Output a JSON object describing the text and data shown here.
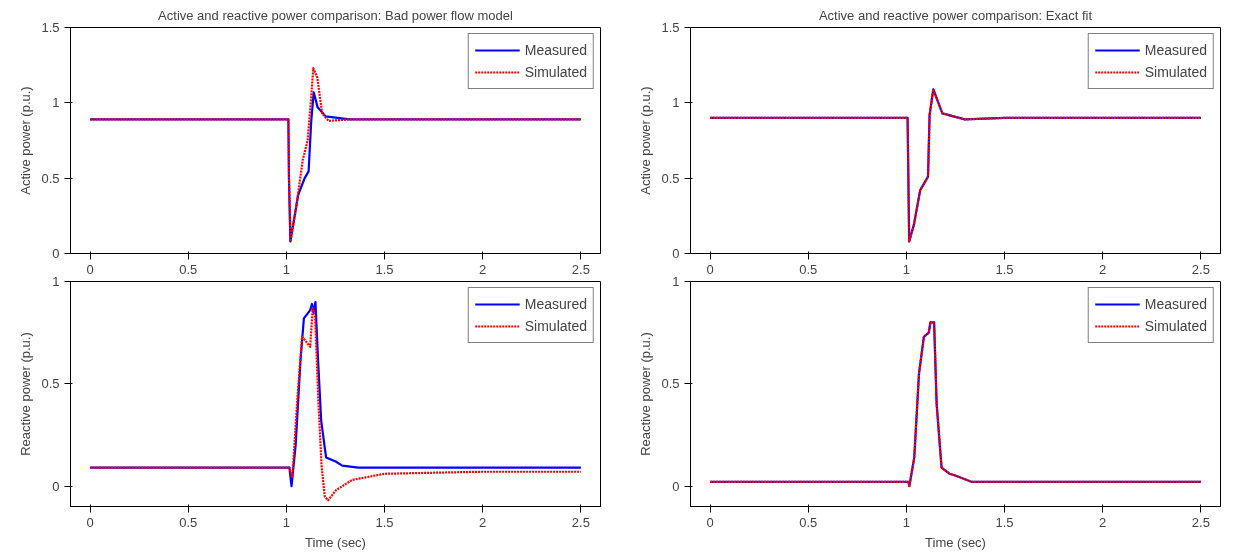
{
  "chart_data": [
    {
      "type": "line",
      "title": "Active and reactive power comparison: Bad power flow model",
      "ylabel": "Active power (p.u.)",
      "xlim": [
        -0.1,
        2.6
      ],
      "ylim": [
        0,
        1.5
      ],
      "xticks": [
        0,
        0.5,
        1,
        1.5,
        2,
        2.5
      ],
      "yticks": [
        0,
        0.5,
        1,
        1.5
      ],
      "grid": false,
      "legend": "top right",
      "marker": "none",
      "series": [
        {
          "name": "Measured",
          "color": "#0000ff",
          "line_style": "solid",
          "x": [
            0,
            1.01,
            1.013,
            1.02,
            1.06,
            1.093,
            1.113,
            1.126,
            1.139,
            1.159,
            1.2,
            1.32,
            1.5,
            2.5
          ],
          "values": [
            0.89,
            0.89,
            0.5,
            0.08,
            0.39,
            0.5,
            0.545,
            0.87,
            1.07,
            0.97,
            0.91,
            0.89,
            0.89,
            0.89
          ]
        },
        {
          "name": "Simulated",
          "color": "#ff0000",
          "line_style": "dotted",
          "x": [
            0,
            1.01,
            1.013,
            1.021,
            1.05,
            1.083,
            1.108,
            1.124,
            1.137,
            1.157,
            1.182,
            1.215,
            1.32,
            1.5,
            2.5
          ],
          "values": [
            0.89,
            0.89,
            0.5,
            0.08,
            0.31,
            0.62,
            0.75,
            1.0,
            1.23,
            1.17,
            0.93,
            0.88,
            0.89,
            0.89,
            0.89
          ]
        }
      ]
    },
    {
      "type": "line",
      "title": "Active and reactive power comparison: Exact fit",
      "ylabel": "Active power (p.u.)",
      "xlim": [
        -0.1,
        2.6
      ],
      "ylim": [
        0,
        1.5
      ],
      "xticks": [
        0,
        0.5,
        1,
        1.5,
        2,
        2.5
      ],
      "yticks": [
        0,
        0.5,
        1,
        1.5
      ],
      "grid": false,
      "legend": "top right",
      "marker": "none",
      "series": [
        {
          "name": "Measured",
          "color": "#0000ff",
          "line_style": "solid",
          "x": [
            0,
            1.006,
            1.014,
            1.038,
            1.07,
            1.11,
            1.118,
            1.137,
            1.183,
            1.297,
            1.5,
            2.5
          ],
          "values": [
            0.9,
            0.9,
            0.08,
            0.19,
            0.42,
            0.51,
            0.92,
            1.09,
            0.93,
            0.89,
            0.9,
            0.9
          ]
        },
        {
          "name": "Simulated",
          "color": "#ff0000",
          "line_style": "dotted",
          "x": [
            0,
            1.006,
            1.014,
            1.038,
            1.07,
            1.11,
            1.118,
            1.137,
            1.183,
            1.297,
            1.5,
            2.5
          ],
          "values": [
            0.9,
            0.9,
            0.08,
            0.19,
            0.42,
            0.51,
            0.92,
            1.09,
            0.93,
            0.89,
            0.9,
            0.9
          ]
        }
      ]
    },
    {
      "type": "line",
      "xlabel": "Time (sec)",
      "ylabel": "Reactive power (p.u.)",
      "xlim": [
        -0.1,
        2.6
      ],
      "ylim": [
        -0.1,
        1
      ],
      "xticks": [
        0,
        0.5,
        1,
        1.5,
        2,
        2.5
      ],
      "yticks": [
        0,
        0.5,
        1
      ],
      "grid": false,
      "legend": "top right",
      "marker": "none",
      "series": [
        {
          "name": "Measured",
          "color": "#0000ff",
          "line_style": "solid",
          "x": [
            0,
            1.015,
            1.026,
            1.047,
            1.072,
            1.089,
            1.121,
            1.13,
            1.137,
            1.148,
            1.161,
            1.177,
            1.202,
            1.251,
            1.284,
            1.366,
            1.5,
            2.5
          ],
          "values": [
            0.09,
            0.09,
            0.0,
            0.2,
            0.62,
            0.82,
            0.86,
            0.89,
            0.85,
            0.9,
            0.62,
            0.32,
            0.14,
            0.12,
            0.1,
            0.09,
            0.09,
            0.09
          ]
        },
        {
          "name": "Simulated",
          "color": "#ff0000",
          "line_style": "dotted",
          "x": [
            0,
            1.015,
            1.03,
            1.056,
            1.08,
            1.105,
            1.121,
            1.134,
            1.146,
            1.162,
            1.179,
            1.195,
            1.212,
            1.253,
            1.335,
            1.5,
            2.0,
            2.5
          ],
          "values": [
            0.09,
            0.09,
            0.04,
            0.43,
            0.73,
            0.7,
            0.68,
            0.87,
            0.83,
            0.43,
            0.1,
            -0.05,
            -0.07,
            -0.02,
            0.03,
            0.06,
            0.07,
            0.07
          ]
        }
      ]
    },
    {
      "type": "line",
      "xlabel": "Time (sec)",
      "ylabel": "Reactive power (p.u.)",
      "xlim": [
        -0.1,
        2.6
      ],
      "ylim": [
        -0.1,
        1
      ],
      "xticks": [
        0,
        0.5,
        1,
        1.5,
        2,
        2.5
      ],
      "yticks": [
        0,
        0.5,
        1
      ],
      "grid": false,
      "legend": "top right",
      "marker": "none",
      "series": [
        {
          "name": "Measured",
          "color": "#0000ff",
          "line_style": "solid",
          "x": [
            0,
            1.01,
            1.015,
            1.04,
            1.064,
            1.089,
            1.114,
            1.122,
            1.141,
            1.154,
            1.179,
            1.22,
            1.252,
            1.334,
            1.5,
            2.5
          ],
          "values": [
            0.02,
            0.02,
            0.0,
            0.14,
            0.55,
            0.73,
            0.75,
            0.8,
            0.8,
            0.4,
            0.09,
            0.06,
            0.05,
            0.02,
            0.02,
            0.02
          ]
        },
        {
          "name": "Simulated",
          "color": "#ff0000",
          "line_style": "dotted",
          "x": [
            0,
            1.01,
            1.015,
            1.04,
            1.064,
            1.089,
            1.114,
            1.122,
            1.141,
            1.154,
            1.179,
            1.22,
            1.252,
            1.334,
            1.5,
            2.5
          ],
          "values": [
            0.02,
            0.02,
            0.0,
            0.14,
            0.55,
            0.73,
            0.75,
            0.8,
            0.8,
            0.4,
            0.09,
            0.06,
            0.05,
            0.02,
            0.02,
            0.02
          ]
        }
      ]
    }
  ]
}
